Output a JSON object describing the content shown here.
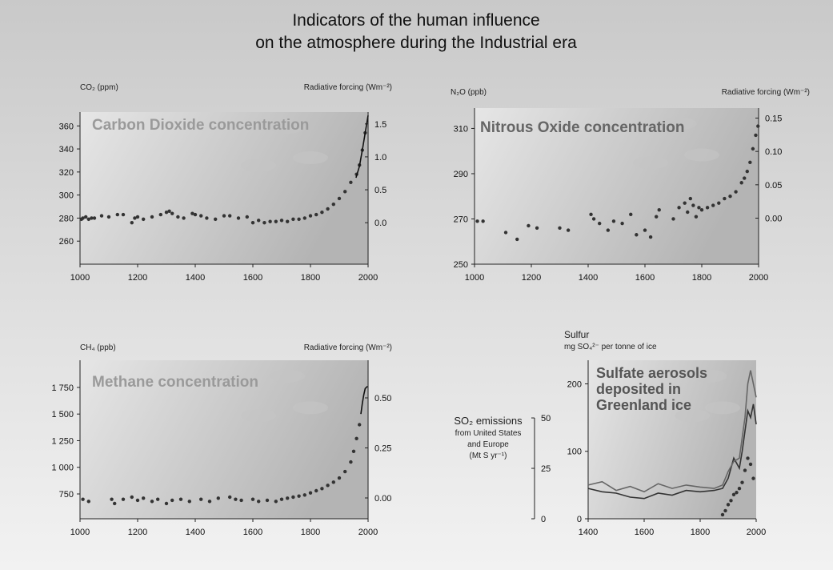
{
  "title": [
    "Indicators of the human influence",
    "on the atmosphere during the Industrial era"
  ],
  "chart_data": [
    {
      "type": "scatter",
      "annotation": [
        "Carbon Dioxide concentration"
      ],
      "y_label": [
        "CO₂ (ppm)"
      ],
      "y2_label": [
        "Radiative forcing (Wm⁻²)"
      ],
      "xlim": [
        1000,
        2000
      ],
      "xticks": [
        1000,
        1200,
        1400,
        1600,
        1800,
        2000
      ],
      "ylim": [
        240,
        372
      ],
      "yticks": [
        260,
        280,
        300,
        320,
        340,
        360
      ],
      "y2lim": [
        -0.63,
        1.68
      ],
      "y2ticks": [
        {
          "value": 0,
          "label": "0.0"
        },
        0.5,
        {
          "value": 1,
          "label": "1.0"
        },
        1.5
      ],
      "series": [
        {
          "style": "dots",
          "color": "#333333",
          "x": [
            1005,
            1010,
            1020,
            1030,
            1040,
            1050,
            1075,
            1100,
            1130,
            1150,
            1180,
            1190,
            1200,
            1220,
            1250,
            1280,
            1300,
            1310,
            1320,
            1340,
            1360,
            1390,
            1400,
            1420,
            1440,
            1470,
            1500,
            1520,
            1550,
            1580,
            1600,
            1620,
            1640,
            1660,
            1680,
            1700,
            1720,
            1740,
            1760,
            1780,
            1800,
            1820,
            1840,
            1860,
            1880,
            1900,
            1920,
            1940,
            1960,
            1970,
            1980,
            1990
          ],
          "values": [
            279,
            280,
            281,
            279,
            280,
            280,
            282,
            281,
            283,
            283,
            276,
            280,
            281,
            279,
            281,
            283,
            285,
            286,
            284,
            281,
            280,
            284,
            283,
            282,
            280,
            279,
            282,
            282,
            280,
            281,
            276,
            278,
            276,
            277,
            277,
            278,
            277,
            279,
            279,
            280,
            282,
            283,
            285,
            288,
            292,
            297,
            303,
            311,
            318,
            326,
            339,
            354
          ]
        },
        {
          "style": "line",
          "color": "#111111",
          "x": [
            1958,
            1970,
            1980,
            1990,
            2000
          ],
          "values": [
            315,
            325,
            339,
            354,
            369
          ]
        }
      ]
    },
    {
      "type": "scatter",
      "annotation": [
        "Nitrous Oxide concentration"
      ],
      "y_label": [
        "N₂O (ppb)"
      ],
      "y2_label": [
        "Radiative forcing (Wm⁻²)"
      ],
      "xlim": [
        1000,
        2000
      ],
      "xticks": [
        1000,
        1200,
        1400,
        1600,
        1800,
        2000
      ],
      "ylim": [
        250,
        319
      ],
      "yticks": [
        250,
        270,
        290,
        310
      ],
      "y2lim": [
        -0.069,
        0.165
      ],
      "y2ticks": [
        {
          "value": 0,
          "label": "0.00"
        },
        0.05,
        {
          "value": 0.1,
          "label": "0.10"
        },
        0.15
      ],
      "series": [
        {
          "style": "dots",
          "color": "#333333",
          "x": [
            1010,
            1030,
            1110,
            1150,
            1190,
            1220,
            1300,
            1330,
            1410,
            1420,
            1440,
            1470,
            1490,
            1520,
            1550,
            1570,
            1600,
            1620,
            1640,
            1650,
            1700,
            1720,
            1740,
            1750,
            1760,
            1770,
            1780,
            1790,
            1800,
            1820,
            1840,
            1860,
            1880,
            1900,
            1920,
            1940,
            1950,
            1960,
            1970,
            1980,
            1990,
            1998
          ],
          "values": [
            269,
            269,
            264,
            261,
            267,
            266,
            266,
            265,
            272,
            270,
            268,
            265,
            269,
            268,
            272,
            263,
            265,
            262,
            271,
            274,
            270,
            275,
            277,
            273,
            279,
            276,
            271,
            275,
            274,
            275,
            276,
            277,
            279,
            280,
            282,
            286,
            288,
            291,
            295,
            301,
            307,
            311
          ]
        }
      ]
    },
    {
      "type": "scatter",
      "annotation": [
        "Methane concentration"
      ],
      "y_label": [
        "CH₄ (ppb)"
      ],
      "y2_label": [
        "Radiative forcing (Wm⁻²)"
      ],
      "xlim": [
        1000,
        2000
      ],
      "xticks": [
        1000,
        1200,
        1400,
        1600,
        1800,
        2000
      ],
      "ylim": [
        517,
        2005
      ],
      "yticks": [
        750,
        {
          "value": 1000,
          "label": "1 000"
        },
        {
          "value": 1250,
          "label": "1 250"
        },
        {
          "value": 1500,
          "label": "1 500"
        },
        {
          "value": 1750,
          "label": "1 750"
        }
      ],
      "y2lim": [
        -0.104,
        0.688
      ],
      "y2ticks": [
        {
          "value": 0,
          "label": "0.00"
        },
        0.25,
        {
          "value": 0.5,
          "label": "0.50"
        }
      ],
      "series": [
        {
          "style": "dots",
          "color": "#333333",
          "x": [
            1010,
            1030,
            1110,
            1120,
            1150,
            1180,
            1200,
            1220,
            1250,
            1270,
            1300,
            1320,
            1350,
            1380,
            1420,
            1450,
            1480,
            1520,
            1540,
            1560,
            1600,
            1620,
            1650,
            1680,
            1700,
            1720,
            1740,
            1760,
            1780,
            1800,
            1820,
            1840,
            1860,
            1880,
            1900,
            1920,
            1940,
            1950,
            1960,
            1970
          ],
          "values": [
            700,
            680,
            700,
            660,
            700,
            720,
            690,
            710,
            680,
            700,
            660,
            690,
            700,
            680,
            700,
            680,
            710,
            720,
            700,
            690,
            700,
            680,
            690,
            680,
            700,
            710,
            720,
            730,
            740,
            760,
            780,
            800,
            830,
            860,
            900,
            960,
            1050,
            1150,
            1270,
            1400
          ]
        },
        {
          "style": "line",
          "color": "#111111",
          "x": [
            1975,
            1980,
            1985,
            1990,
            1998
          ],
          "values": [
            1500,
            1600,
            1680,
            1740,
            1760
          ]
        }
      ]
    },
    {
      "type": "line",
      "annotation": [
        "Sulfate aerosols",
        "deposited in",
        "Greenland ice"
      ],
      "y_label": [
        "Sulfur",
        "mg SO₄²⁻ per tonne of ice"
      ],
      "y2_label": [
        "SO₂ emissions",
        "from United States",
        "and Europe",
        "(Mt S yr⁻¹)"
      ],
      "xlim": [
        1400,
        2000
      ],
      "xticks": [
        1400,
        1600,
        1800,
        2000
      ],
      "ylim": [
        0,
        235
      ],
      "yticks": [
        0,
        100,
        200
      ],
      "y2lim": [
        0,
        78.6
      ],
      "y2ticks": [
        0,
        25,
        50
      ],
      "series": [
        {
          "style": "line",
          "color": "#333333",
          "x": [
            1400,
            1450,
            1500,
            1550,
            1600,
            1650,
            1700,
            1750,
            1800,
            1850,
            1880,
            1900,
            1920,
            1940,
            1950,
            1960,
            1970,
            1980,
            1990,
            2000
          ],
          "values": [
            45,
            40,
            38,
            32,
            30,
            38,
            35,
            42,
            40,
            42,
            45,
            60,
            90,
            75,
            100,
            130,
            160,
            150,
            170,
            140
          ]
        },
        {
          "style": "line",
          "color": "#666666",
          "x": [
            1400,
            1450,
            1500,
            1550,
            1600,
            1650,
            1700,
            1750,
            1800,
            1850,
            1880,
            1900,
            1920,
            1940,
            1950,
            1960,
            1970,
            1980,
            1990,
            2000
          ],
          "values": [
            50,
            55,
            42,
            48,
            40,
            52,
            45,
            50,
            47,
            45,
            50,
            70,
            85,
            90,
            120,
            150,
            200,
            220,
            200,
            180
          ]
        },
        {
          "style": "dots",
          "color": "#333333",
          "axis": "y2",
          "x": [
            1880,
            1890,
            1900,
            1910,
            1920,
            1930,
            1940,
            1950,
            1960,
            1970,
            1980,
            1990
          ],
          "values": [
            2,
            4,
            7,
            9,
            12,
            13,
            15,
            18,
            24,
            30,
            27,
            20
          ]
        }
      ]
    }
  ]
}
